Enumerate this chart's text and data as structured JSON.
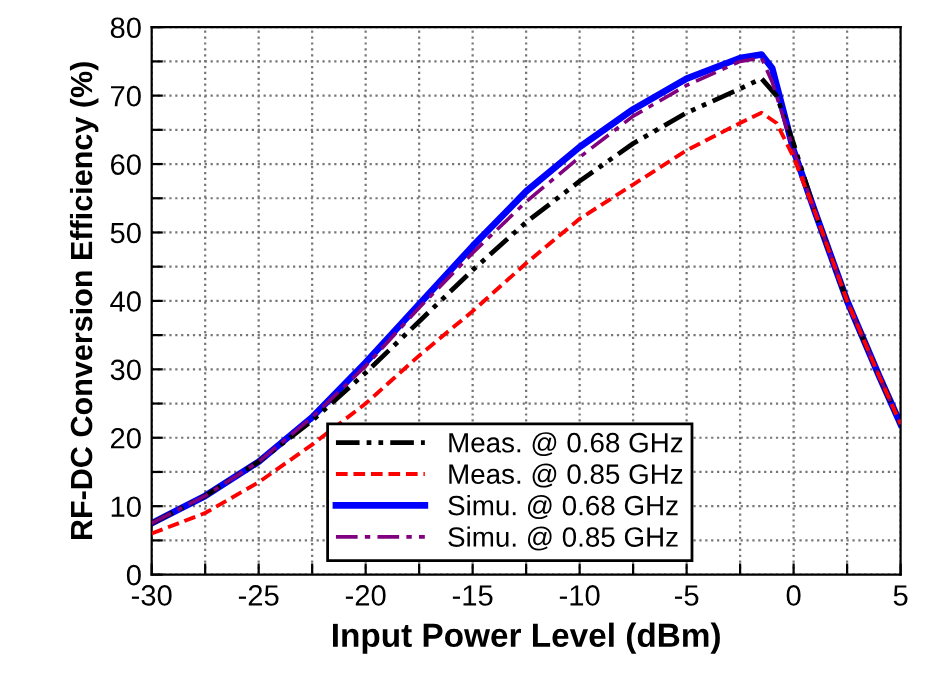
{
  "chart_data": {
    "type": "line",
    "xlabel": "Input Power Level (dBm)",
    "ylabel": "RF-DC Conversion Efficiency (%)",
    "xlim": [
      -30,
      5
    ],
    "ylim": [
      0,
      80
    ],
    "xticks": [
      -30,
      {
        "value": -27.5,
        "label": null
      },
      -25,
      {
        "value": -22.5,
        "label": null
      },
      -20,
      {
        "value": -17.5,
        "label": null
      },
      -15,
      {
        "value": -12.5,
        "label": null
      },
      -10,
      {
        "value": -7.5,
        "label": null
      },
      -5,
      {
        "value": -2.5,
        "label": null
      },
      0,
      {
        "value": 2.5,
        "label": null
      },
      5
    ],
    "yticks": [
      0,
      {
        "value": 5,
        "label": null
      },
      10,
      {
        "value": 15,
        "label": null
      },
      20,
      {
        "value": 25,
        "label": null
      },
      30,
      {
        "value": 35,
        "label": null
      },
      40,
      {
        "value": 45,
        "label": null
      },
      50,
      {
        "value": 55,
        "label": null
      },
      60,
      {
        "value": 65,
        "label": null
      },
      70,
      {
        "value": 75,
        "label": null
      },
      80
    ],
    "grid": true,
    "legend": "bottom right",
    "series": [
      {
        "name": "Meas. @ 0.68 GHz",
        "color": "#000000",
        "line_style": "dashdot",
        "x": [
          -30,
          -27.5,
          -25,
          -22.5,
          -20,
          -17.5,
          -15,
          -12.5,
          -10,
          -7.5,
          -5,
          -2.5,
          -1.5,
          -0.8,
          0,
          1,
          2.5,
          4,
          5
        ],
        "values": [
          7.5,
          11.5,
          16.5,
          22.5,
          29.5,
          37,
          44.5,
          51.5,
          57.5,
          63,
          67.5,
          71,
          72.5,
          70,
          63,
          53,
          40,
          29,
          22
        ]
      },
      {
        "name": "Meas. @ 0.85 GHz",
        "color": "#ff0000",
        "line_style": "dashed",
        "x": [
          -30,
          -27.5,
          -25,
          -22.5,
          -20,
          -17.5,
          -15,
          -12.5,
          -10,
          -7.5,
          -5,
          -2.5,
          -1.5,
          -0.8,
          0,
          1,
          2.5,
          4,
          5
        ],
        "values": [
          6,
          9,
          13.5,
          19,
          25,
          32,
          38.5,
          45.5,
          52,
          57,
          62,
          66,
          67.5,
          66,
          61,
          53,
          40,
          29,
          22
        ]
      },
      {
        "name": "Simu. @ 0.68 GHz",
        "color": "#0000ff",
        "line_style": "solid",
        "x": [
          -30,
          -27.5,
          -25,
          -22.5,
          -20,
          -17.5,
          -15,
          -12.5,
          -10,
          -7.5,
          -5,
          -2.5,
          -1.5,
          -1,
          0,
          1,
          2.5,
          4,
          5
        ],
        "values": [
          7.5,
          11.5,
          16.5,
          23,
          31,
          39.5,
          48,
          56,
          62.5,
          68,
          72.5,
          75.5,
          76,
          74,
          62,
          53,
          40,
          29,
          22
        ]
      },
      {
        "name": "Simu. @ 0.85 GHz",
        "color": "#800080",
        "line_style": "dashdot2",
        "x": [
          -30,
          -27.5,
          -25,
          -22.5,
          -20,
          -17.5,
          -15,
          -12.5,
          -10,
          -7.5,
          -5,
          -2.5,
          -1.5,
          -1,
          0,
          1,
          2.5,
          4,
          5
        ],
        "values": [
          7.5,
          11.5,
          16.5,
          23,
          30.5,
          39,
          47,
          54.5,
          61,
          67,
          71.5,
          75,
          75.5,
          72,
          62,
          53,
          40,
          29,
          22
        ]
      }
    ]
  }
}
